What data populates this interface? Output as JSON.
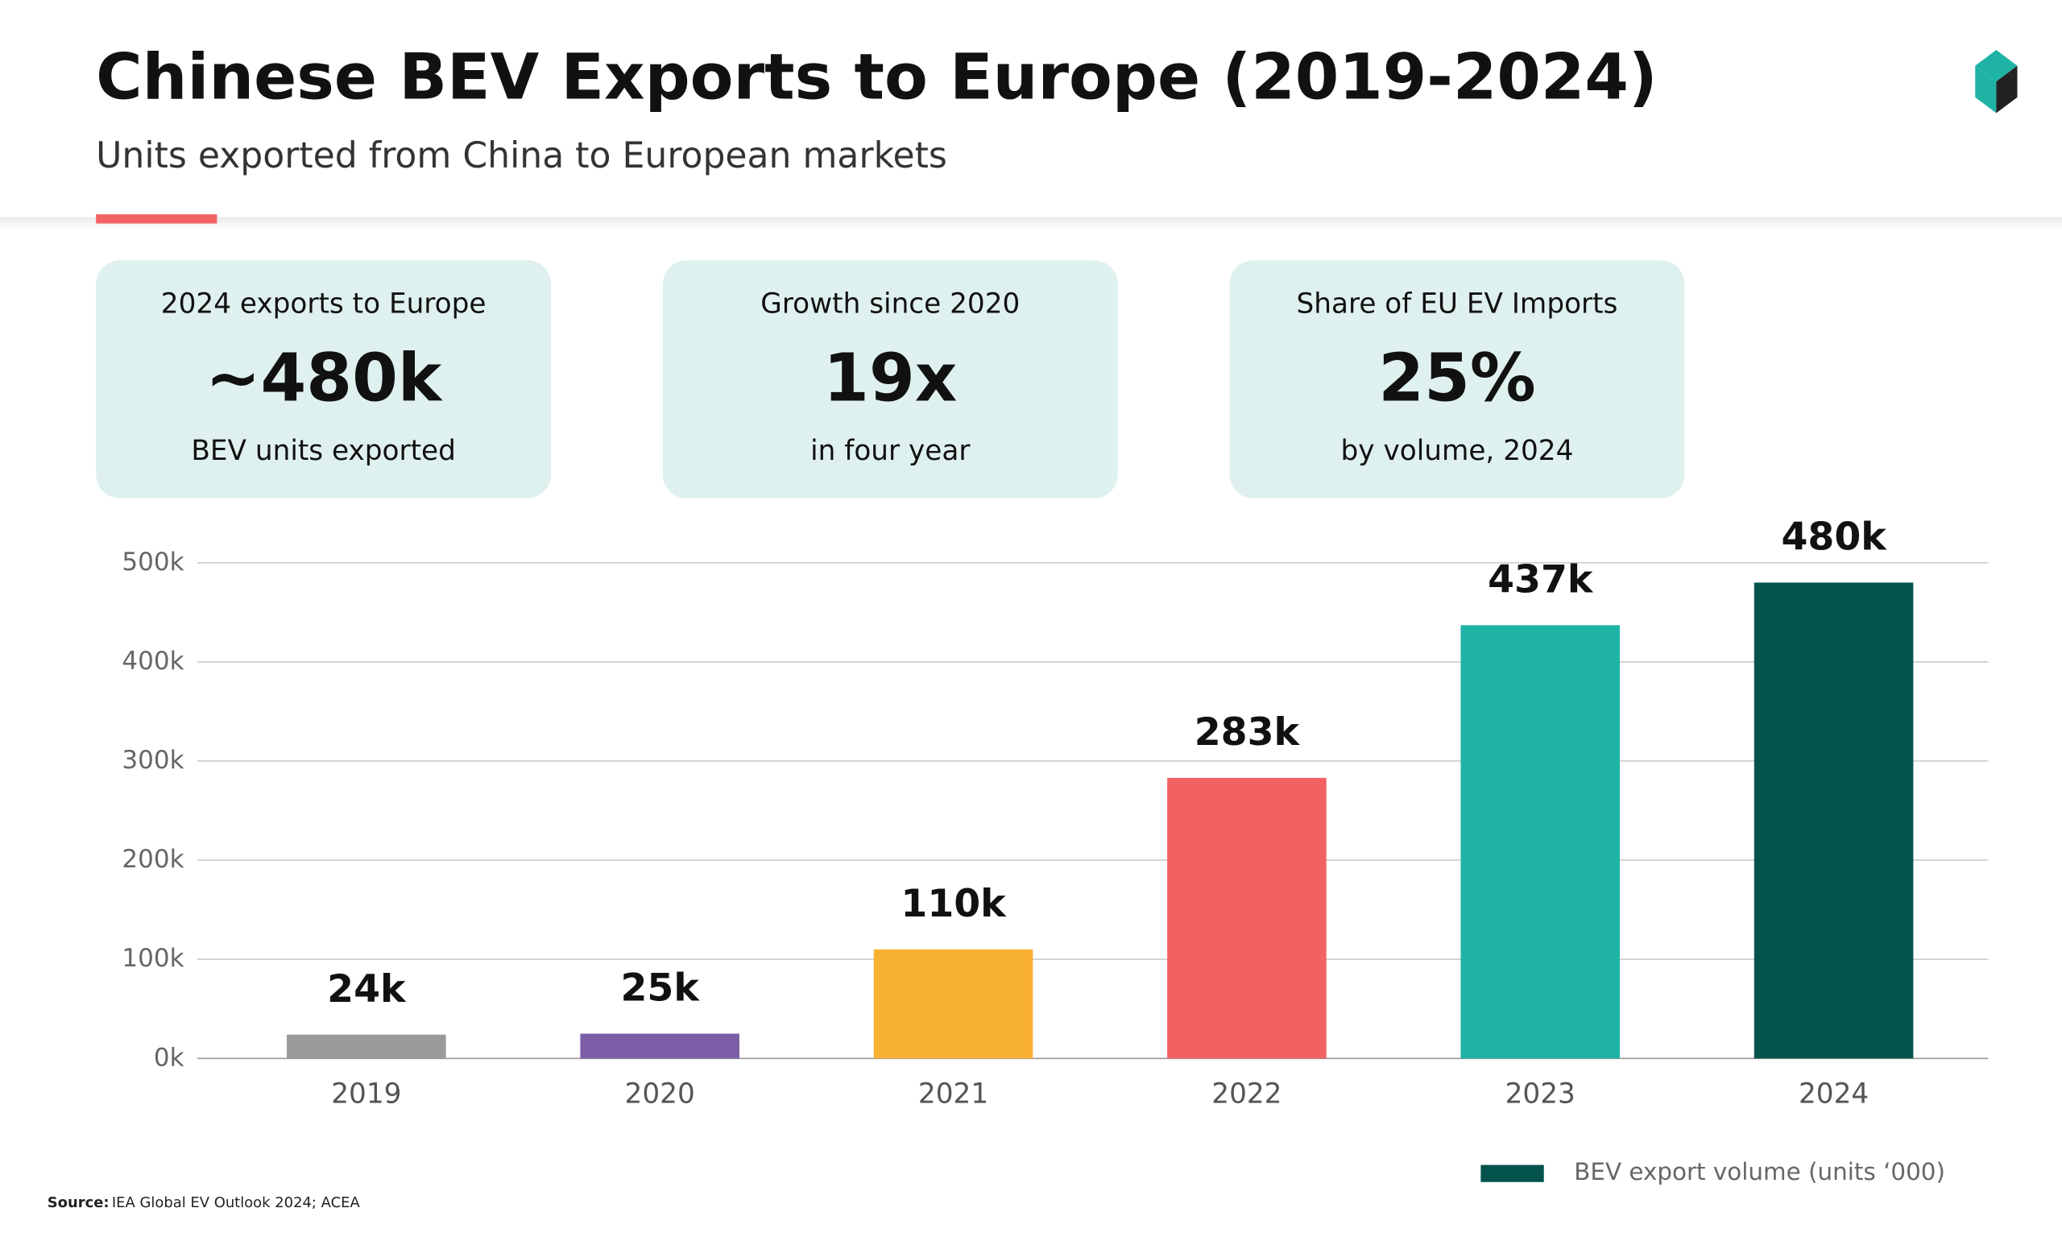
{
  "header": {
    "title": "Chinese BEV Exports to Europe (2019-2024)",
    "subtitle": "Units exported from China to European markets"
  },
  "kpis": [
    {
      "label": "2024 exports to Europe",
      "value": "~480k",
      "note": "BEV units exported"
    },
    {
      "label": "Growth since 2020",
      "value": "19x",
      "note": "in four year"
    },
    {
      "label": "Share of EU EV Imports",
      "value": "25%",
      "note": "by volume, 2024"
    }
  ],
  "chart_data": {
    "type": "bar",
    "categories": [
      "2019",
      "2020",
      "2021",
      "2022",
      "2023",
      "2024"
    ],
    "values": [
      24,
      25,
      110,
      283,
      437,
      480
    ],
    "value_labels": [
      "24k",
      "25k",
      "110k",
      "283k",
      "437k",
      "480k"
    ],
    "colors": [
      "#999999",
      "#7b5ea7",
      "#f7b032",
      "#f26262",
      "#1fb3a6",
      "#04534c"
    ],
    "ylim": [
      0,
      500
    ],
    "yticks": [
      {
        "value": 0,
        "label": "0k"
      },
      {
        "value": 100,
        "label": "100k"
      },
      {
        "value": 200,
        "label": "200k"
      },
      {
        "value": 300,
        "label": "300k"
      },
      {
        "value": 400,
        "label": "400k"
      },
      {
        "value": 500,
        "label": "500k"
      }
    ],
    "grid": true,
    "legend": {
      "name": "BEV export volume (units ‘000)",
      "color": "#04534c",
      "position": "bottom-right"
    }
  },
  "footer": {
    "source_label": "Source:",
    "source": "IEA Global EV Outlook 2024; ACEA"
  }
}
